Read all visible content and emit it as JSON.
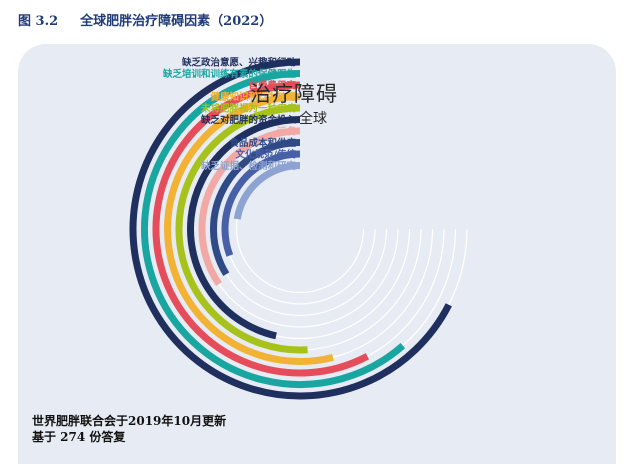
{
  "figure": {
    "number": "图 3.2",
    "caption": "全球肥胖治疗障碍因素（2022）"
  },
  "chart_data": {
    "type": "radial_bar",
    "title": "治疗障碍",
    "subtitle": "全球",
    "series": [
      {
        "label": "缺乏政治意愿、兴趣和行动",
        "value": 0.9,
        "color": "#1f2f5e"
      },
      {
        "label": "缺乏培训和训练有素的保健医生",
        "value": 0.82,
        "color": "#1aa6a0"
      },
      {
        "label": "自费费用高",
        "value": 0.77,
        "color": "#e64d5b"
      },
      {
        "label": "健康知识和行为缺乏",
        "value": 0.72,
        "color": "#f2b233"
      },
      {
        "label": "未将肥胖视为一种疾病",
        "value": 0.68,
        "color": "#a8c21c"
      },
      {
        "label": "缺乏对肥胖的资金投入",
        "value": 0.62,
        "color": "#1f2f5e"
      },
      {
        "label": "污名",
        "value": 0.46,
        "color": "#f2a9a6"
      },
      {
        "label": "食品成本和供应",
        "value": 0.45,
        "color": "#2f4a86"
      },
      {
        "label": "文化规范/传统",
        "value": 0.41,
        "color": "#4760a8"
      },
      {
        "label": "缺乏证据、检测和研究",
        "value": 0.3,
        "color": "#8da3d1"
      }
    ],
    "max_value": 1.0
  },
  "footer": {
    "source": "世界肥胖联合会于2019年10月更新",
    "note": "基于  274  份答复"
  }
}
